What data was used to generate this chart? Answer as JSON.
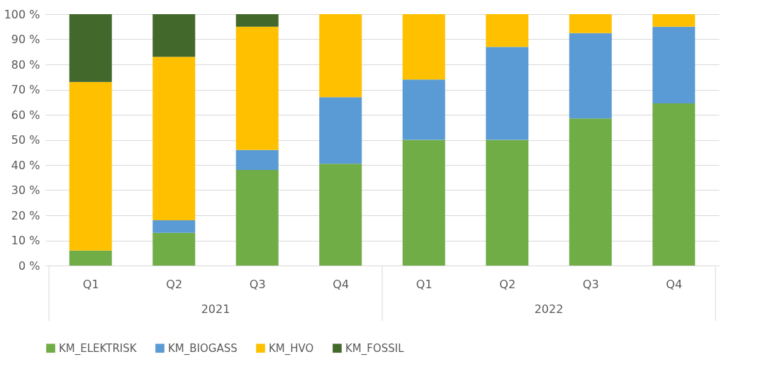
{
  "chart_data": {
    "type": "bar",
    "stacked": true,
    "categories": [
      "Q1",
      "Q2",
      "Q3",
      "Q4",
      "Q1",
      "Q2",
      "Q3",
      "Q4"
    ],
    "series": [
      {
        "name": "KM_ELEKTRISK",
        "color": "#70ad47",
        "values": [
          6,
          13,
          38,
          40.5,
          50,
          50,
          58.5,
          64.5
        ]
      },
      {
        "name": "KM_BIOGASS",
        "color": "#5b9bd5",
        "values": [
          null,
          5,
          8,
          26.5,
          24,
          37,
          34,
          30.5
        ]
      },
      {
        "name": "KM_HVO",
        "color": "#ffc000",
        "values": [
          67,
          65,
          49,
          33,
          26,
          13,
          7.5,
          5
        ]
      },
      {
        "name": "KM_FOSSIL",
        "color": "#43682b",
        "values": [
          27,
          17,
          5,
          null,
          null,
          null,
          null,
          null
        ]
      }
    ],
    "annotations": [
      "2021",
      "2022"
    ],
    "ylim": [
      0,
      100
    ],
    "yticks": [
      {
        "value": 0,
        "label": "0 %"
      },
      {
        "value": 10,
        "label": "10 %"
      },
      {
        "value": 20,
        "label": "20 %"
      },
      {
        "value": 30,
        "label": "30 %"
      },
      {
        "value": 40,
        "label": "40 %"
      },
      {
        "value": 50,
        "label": "50 %"
      },
      {
        "value": 60,
        "label": "60 %"
      },
      {
        "value": 70,
        "label": "70 %"
      },
      {
        "value": 80,
        "label": "80 %"
      },
      {
        "value": 90,
        "label": "90 %"
      },
      {
        "value": 100,
        "label": "100 %"
      }
    ],
    "grid": "y",
    "legend": "bottom"
  }
}
